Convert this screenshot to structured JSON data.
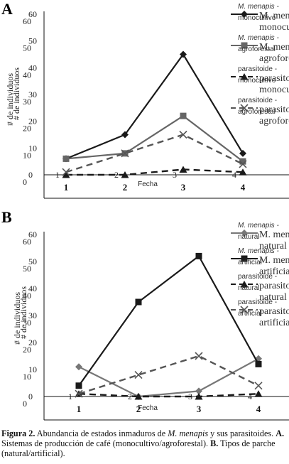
{
  "chart_data": [
    {
      "panel": "A",
      "type": "line",
      "categories": [
        "1",
        "2",
        "3",
        "4"
      ],
      "xlabel": "Fecha",
      "ylabel": "# de individuos",
      "yticks": [
        "0",
        "10",
        "20",
        "30",
        "40",
        "50",
        "60"
      ],
      "ylim": [
        0,
        60
      ],
      "legend_position": "right",
      "series": [
        {
          "name_line1": "M. menapis -",
          "name_line2": "monocultivo",
          "color": "#1a1a1a",
          "dash": "solid",
          "marker": "diamond",
          "values": [
            6,
            15,
            45,
            8
          ]
        },
        {
          "name_line1": "M. menapis -",
          "name_line2": "agroforestal",
          "color": "#666666",
          "dash": "solid",
          "marker": "square",
          "values": [
            6,
            8,
            22,
            5
          ]
        },
        {
          "name_line1": "parasitoide -",
          "name_line2": "monocultivo",
          "color": "#1a1a1a",
          "dash": "dashed",
          "marker": "triangle",
          "values": [
            0,
            0,
            2,
            1
          ]
        },
        {
          "name_line1": "parasitoide -",
          "name_line2": "agroforestal",
          "color": "#555555",
          "dash": "dashed",
          "marker": "x",
          "values": [
            1,
            8,
            15,
            4
          ]
        }
      ]
    },
    {
      "panel": "B",
      "type": "line",
      "categories": [
        "1",
        "2",
        "3",
        "4"
      ],
      "xlabel": "Fecha",
      "ylabel": "# de individuos",
      "yticks": [
        "0",
        "10",
        "20",
        "30",
        "40",
        "50",
        "60"
      ],
      "ylim": [
        0,
        60
      ],
      "legend_position": "right",
      "series": [
        {
          "name_line1": "M. menapis -",
          "name_line2": "natural",
          "color": "#777777",
          "dash": "solid",
          "marker": "diamond",
          "values": [
            11,
            0,
            2,
            14
          ]
        },
        {
          "name_line1": "M. menapis -",
          "name_line2": "artificial",
          "color": "#1a1a1a",
          "dash": "solid",
          "marker": "square",
          "values": [
            4,
            35,
            52,
            12
          ]
        },
        {
          "name_line1": "parasitoide -",
          "name_line2": "natural",
          "color": "#1a1a1a",
          "dash": "dashed",
          "marker": "triangle",
          "values": [
            1,
            0,
            0,
            1
          ]
        },
        {
          "name_line1": "parasitoide -",
          "name_line2": "artificial",
          "color": "#555555",
          "dash": "dashed",
          "marker": "x",
          "values": [
            1,
            8,
            15,
            4
          ]
        }
      ]
    }
  ],
  "caption": {
    "figure": "Figura 2.",
    "text1": " Abundancia de estados inmaduros de ",
    "species": "M. menapis",
    "text2": " y sus parasitoides. ",
    "labelA": "A.",
    "textA": " Sistemas de producción de café (monocultivo/agroforestal). ",
    "labelB": "B.",
    "textB": " Tipos de parche (natural/artificial)."
  }
}
